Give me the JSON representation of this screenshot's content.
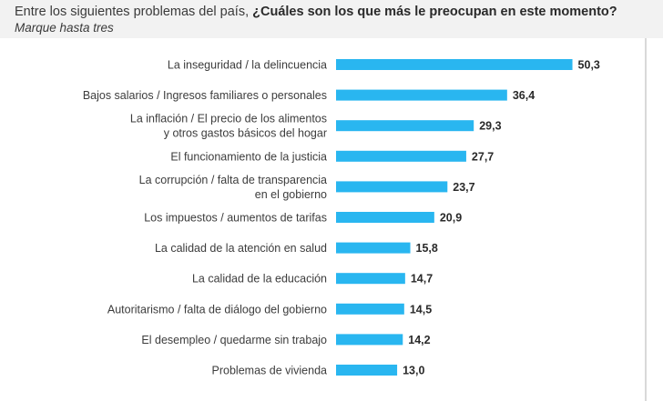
{
  "header": {
    "title_prefix": "Entre los siguientes problemas del país, ",
    "title_question": "¿Cuáles son los que más le preocupan en este momento?",
    "subtitle": "Marque hasta tres"
  },
  "colors": {
    "bar": "#29b6f0",
    "header_bg": "#f2f2f2"
  },
  "chart_data": {
    "type": "bar",
    "orientation": "horizontal",
    "categories": [
      "La inseguridad / la delincuencia",
      "Bajos salarios / Ingresos familiares o personales",
      "La inflación / El precio de los alimentos\ny otros gastos básicos del hogar",
      "El funcionamiento de la justicia",
      "La corrupción / falta de transparencia\nen el gobierno",
      "Los impuestos / aumentos de tarifas",
      "La calidad de la atención en salud",
      "La calidad de la educación",
      "Autoritarismo / falta de diálogo del gobierno",
      "El desempleo / quedarme sin trabajo",
      "Problemas de vivienda"
    ],
    "values": [
      50.3,
      36.4,
      29.3,
      27.7,
      23.7,
      20.9,
      15.8,
      14.7,
      14.5,
      14.2,
      13.0
    ],
    "value_labels": [
      "50,3",
      "36,4",
      "29,3",
      "27,7",
      "23,7",
      "20,9",
      "15,8",
      "14,7",
      "14,5",
      "14,2",
      "13,0"
    ],
    "grid": false,
    "legend": "none"
  }
}
